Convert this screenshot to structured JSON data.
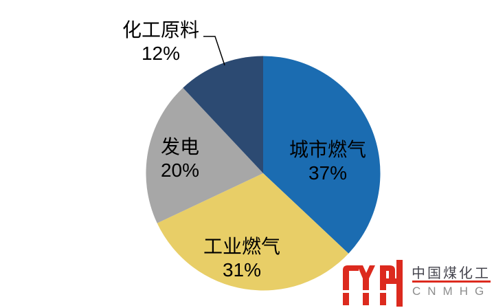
{
  "page": {
    "background": "#FFFFFF"
  },
  "chart_data": {
    "type": "pie",
    "title": "",
    "legend": "none",
    "direction": "clockwise",
    "start_angle_deg": 0,
    "label_color": "#000000",
    "slices": [
      {
        "id": "city-gas",
        "label": "城市燃气",
        "value": 37,
        "pct_label": "37%",
        "color": "#1B6CB1",
        "label_placement": "inside"
      },
      {
        "id": "industrial-gas",
        "label": "工业燃气",
        "value": 31,
        "pct_label": "31%",
        "color": "#E8CE67",
        "label_placement": "inside"
      },
      {
        "id": "power-generation",
        "label": "发电",
        "value": 20,
        "pct_label": "20%",
        "color": "#A7A7A7",
        "label_placement": "inside"
      },
      {
        "id": "chemical-feedstock",
        "label": "化工原料",
        "value": 12,
        "pct_label": "12%",
        "color": "#2C4A72",
        "label_placement": "outside-callout"
      }
    ]
  },
  "watermark": {
    "company_cn": "中国煤化工",
    "company_en": "CNMHG",
    "mark_color": "#DC2A1E",
    "divider_color": "#DC2A1E",
    "cn_color": "#45454E",
    "en_color": "#8C8C8C"
  }
}
